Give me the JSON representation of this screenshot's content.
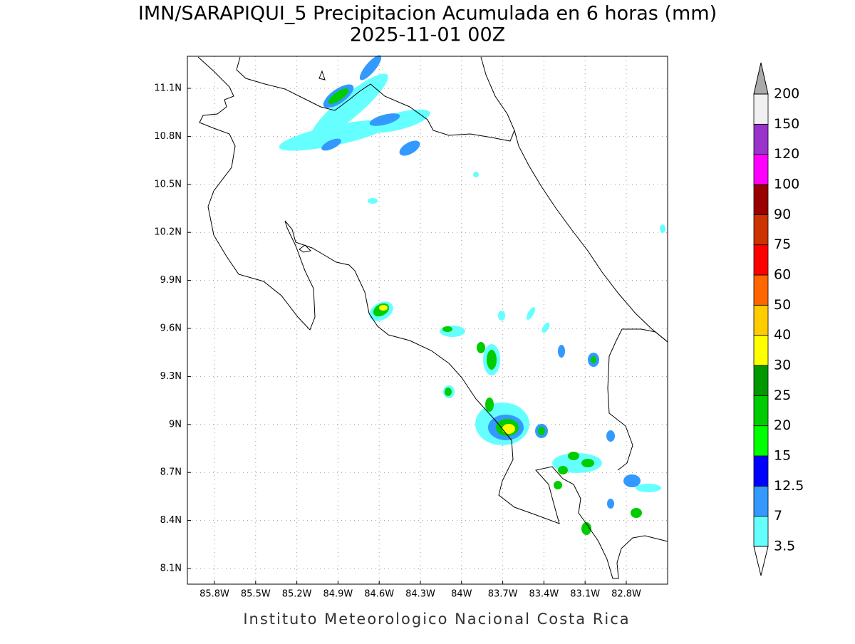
{
  "title": [
    "IMN/SARAPIQUI_5 Precipitacion Acumulada en 6 horas (mm)",
    "2025-11-01 00Z"
  ],
  "map": {
    "x_ticks": [
      "85.8W",
      "85.5W",
      "85.2W",
      "84.9W",
      "84.6W",
      "84.3W",
      "84W",
      "83.7W",
      "83.4W",
      "83.1W",
      "82.8W"
    ],
    "y_ticks": [
      "8.1N",
      "8.4N",
      "8.7N",
      "9N",
      "9.3N",
      "9.6N",
      "9.9N",
      "10.2N",
      "10.5N",
      "10.8N",
      "11.1N"
    ]
  },
  "colorbar": {
    "levels": [
      3.5,
      7,
      12.5,
      15,
      20,
      25,
      30,
      40,
      50,
      60,
      75,
      90,
      100,
      120,
      150,
      200
    ],
    "colors": [
      "#66ffff",
      "#3399ff",
      "#0000ff",
      "#00ff00",
      "#00cc00",
      "#009900",
      "#ffff00",
      "#ffcc00",
      "#ff6600",
      "#ff0000",
      "#cc3300",
      "#990000",
      "#ff00ff",
      "#9933cc",
      "#f0f0f0"
    ],
    "under_color": "#ffffff",
    "over_color": "#aaaaaa"
  },
  "footer": "Instituto Meteorologico Nacional Costa Rica"
}
